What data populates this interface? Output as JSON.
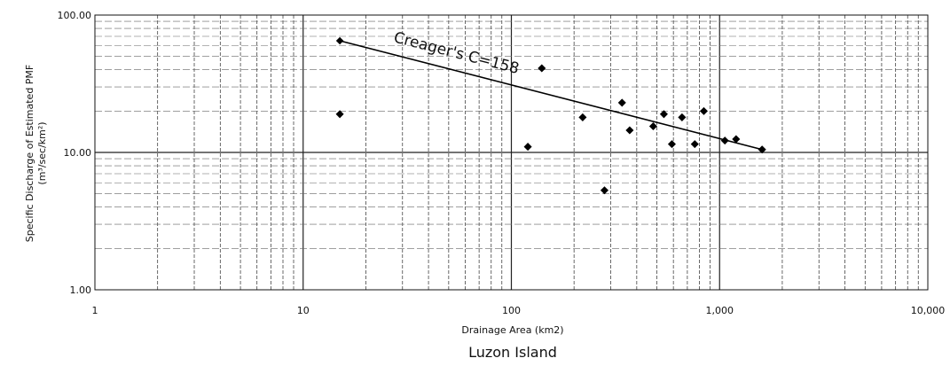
{
  "chart_data": {
    "type": "scatter",
    "title": "",
    "caption": "Luzon Island",
    "xlabel": "Drainage Area (km2)",
    "ylabel_line1": "Specific Discharge of Estimated PMF",
    "ylabel_line2": "(m³/sec/km²)",
    "x_scale": "log",
    "y_scale": "log",
    "xlim": [
      1,
      10000
    ],
    "ylim": [
      1,
      100
    ],
    "x_ticks": [
      1,
      10,
      100,
      1000,
      10000
    ],
    "x_tick_labels": [
      "1",
      "10",
      "100",
      "1,000",
      "10,000"
    ],
    "y_ticks": [
      1,
      10,
      100
    ],
    "y_tick_labels": [
      "1.00",
      "10.00",
      "100.00"
    ],
    "grid": true,
    "grid_minor": true,
    "points": [
      {
        "x": 15,
        "y": 19
      },
      {
        "x": 120,
        "y": 11
      },
      {
        "x": 140,
        "y": 41
      },
      {
        "x": 220,
        "y": 18
      },
      {
        "x": 280,
        "y": 5.3
      },
      {
        "x": 340,
        "y": 23
      },
      {
        "x": 370,
        "y": 14.5
      },
      {
        "x": 480,
        "y": 15.5
      },
      {
        "x": 540,
        "y": 19
      },
      {
        "x": 590,
        "y": 11.5
      },
      {
        "x": 660,
        "y": 18
      },
      {
        "x": 760,
        "y": 11.5
      },
      {
        "x": 840,
        "y": 20
      },
      {
        "x": 1060,
        "y": 12.2
      },
      {
        "x": 1200,
        "y": 12.5
      },
      {
        "x": 1600,
        "y": 10.5
      }
    ],
    "envelope_line": {
      "label": "Creager's C=158",
      "x": [
        15,
        1600
      ],
      "y": [
        65,
        10.5
      ]
    }
  }
}
